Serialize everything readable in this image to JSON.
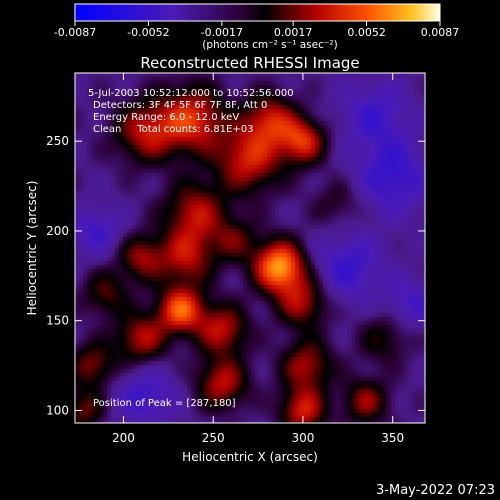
{
  "chart_data": {
    "type": "heatmap",
    "title": "Reconstructed RHESSI Image",
    "xlabel": "Heliocentric X (arcsec)",
    "ylabel": "Heliocentric Y (arcsec)",
    "xlim": [
      173,
      368
    ],
    "ylim": [
      93,
      288
    ],
    "x_ticks": [
      200,
      250,
      300,
      350
    ],
    "y_ticks": [
      100,
      150,
      200,
      250
    ],
    "colorbar": {
      "label": "(photons cm⁻² s⁻¹ asec⁻²)",
      "range": [
        -0.0087,
        0.0087
      ],
      "tick_labels": [
        "-0.0087",
        "-0.0052",
        "-0.0017",
        "0.0017",
        "0.0052",
        "0.0087"
      ]
    },
    "annotations": [
      "5-Jul-2003 10:52:12.000 to 10:52:56.000",
      "Detectors: 3F 4F 5F 6F 7F 8F, Att 0",
      "Energy Range: 6.0 - 12.0 keV",
      "Clean     Total counts: 6.81E+03"
    ],
    "peak_label": "Position of Peak = [287,180]",
    "peak": [
      287,
      180
    ],
    "sources": [
      {
        "x": 287,
        "y": 180,
        "intensity": 0.0087,
        "sigma": 10
      },
      {
        "x": 232,
        "y": 156,
        "intensity": 0.007,
        "sigma": 9
      },
      {
        "x": 238,
        "y": 262,
        "intensity": 0.006,
        "sigma": 13
      },
      {
        "x": 270,
        "y": 240,
        "intensity": 0.0056,
        "sigma": 13
      },
      {
        "x": 212,
        "y": 255,
        "intensity": 0.0048,
        "sigma": 12
      },
      {
        "x": 282,
        "y": 262,
        "intensity": 0.005,
        "sigma": 10
      },
      {
        "x": 300,
        "y": 250,
        "intensity": 0.0058,
        "sigma": 9
      },
      {
        "x": 240,
        "y": 210,
        "intensity": 0.0048,
        "sigma": 12
      },
      {
        "x": 235,
        "y": 185,
        "intensity": 0.0046,
        "sigma": 11
      },
      {
        "x": 255,
        "y": 145,
        "intensity": 0.005,
        "sigma": 10
      },
      {
        "x": 255,
        "y": 115,
        "intensity": 0.005,
        "sigma": 10
      },
      {
        "x": 210,
        "y": 140,
        "intensity": 0.0048,
        "sigma": 10
      },
      {
        "x": 210,
        "y": 185,
        "intensity": 0.0042,
        "sigma": 9
      },
      {
        "x": 300,
        "y": 160,
        "intensity": 0.0046,
        "sigma": 10
      },
      {
        "x": 302,
        "y": 125,
        "intensity": 0.0046,
        "sigma": 10
      },
      {
        "x": 300,
        "y": 100,
        "intensity": 0.0054,
        "sigma": 9
      },
      {
        "x": 335,
        "y": 105,
        "intensity": 0.0042,
        "sigma": 9
      },
      {
        "x": 345,
        "y": 140,
        "intensity": 0.0026,
        "sigma": 10
      },
      {
        "x": 183,
        "y": 125,
        "intensity": 0.004,
        "sigma": 9
      },
      {
        "x": 190,
        "y": 165,
        "intensity": 0.0032,
        "sigma": 9
      },
      {
        "x": 320,
        "y": 215,
        "intensity": 0.002,
        "sigma": 10
      },
      {
        "x": 262,
        "y": 195,
        "intensity": 0.003,
        "sigma": 9
      },
      {
        "x": 178,
        "y": 100,
        "intensity": 0.0036,
        "sigma": 8
      },
      {
        "x": 185,
        "y": 200,
        "intensity": -0.0028,
        "sigma": 10
      },
      {
        "x": 325,
        "y": 180,
        "intensity": -0.0032,
        "sigma": 14
      },
      {
        "x": 350,
        "y": 230,
        "intensity": -0.0034,
        "sigma": 15
      },
      {
        "x": 212,
        "y": 108,
        "intensity": -0.003,
        "sigma": 12
      },
      {
        "x": 340,
        "y": 265,
        "intensity": -0.0028,
        "sigma": 14
      },
      {
        "x": 360,
        "y": 160,
        "intensity": -0.0026,
        "sigma": 10
      }
    ]
  },
  "footer": {
    "timestamp": "3-May-2022 07:23"
  }
}
